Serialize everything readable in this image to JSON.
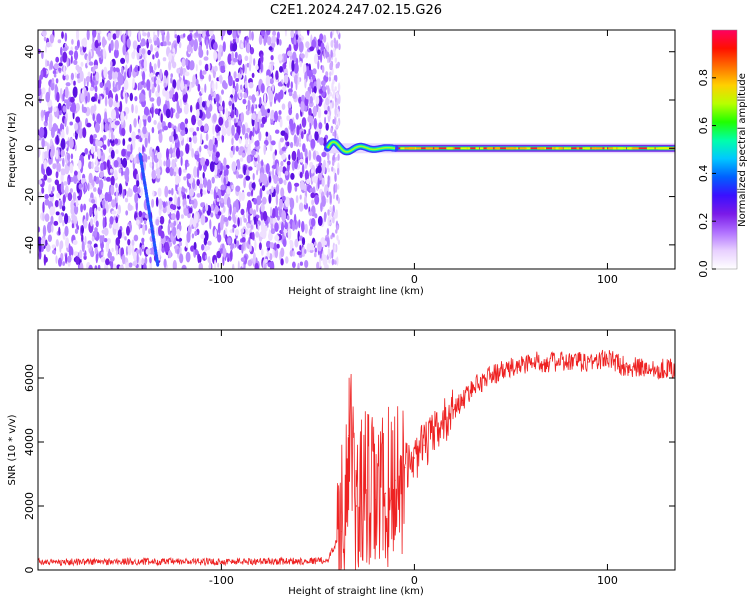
{
  "title": "C2E1.2024.247.02.15.G26",
  "chart_data": [
    {
      "type": "heatmap",
      "xlabel": "Height of straight line (km)",
      "ylabel": "Frequency (Hz)",
      "xlim": [
        -195,
        135
      ],
      "ylim": [
        -50,
        49
      ],
      "xticks": [
        -100,
        0,
        100
      ],
      "yticks": [
        -40,
        -20,
        0,
        20,
        40
      ],
      "colorbar": {
        "label": "Normalized spectral amplitude",
        "range": [
          0,
          1
        ],
        "ticks": [
          0.0,
          0.2,
          0.4,
          0.6,
          0.8
        ],
        "colors": [
          "#ffffff",
          "#e8d0ff",
          "#b070ff",
          "#7a1ae8",
          "#3a10ff",
          "#0060ff",
          "#00c8ff",
          "#00ffaa",
          "#20ff00",
          "#b8ff00",
          "#ffd000",
          "#ff7000",
          "#ff1000",
          "#ff0060"
        ]
      },
      "noise_region_x": [
        -195,
        -45
      ],
      "transition_x": [
        -45,
        -10
      ],
      "carrier_frequency": 0,
      "streak": {
        "x": [
          -142,
          -133
        ],
        "y": [
          -3,
          -48
        ]
      }
    },
    {
      "type": "line",
      "xlabel": "Height of straight line (km)",
      "ylabel": "SNR (10 * v/v)",
      "xlim": [
        -195,
        135
      ],
      "ylim": [
        0,
        7500
      ],
      "xticks": [
        -100,
        0,
        100
      ],
      "yticks": [
        0,
        2000,
        4000,
        6000
      ],
      "color": "#ee2222",
      "series": [
        {
          "x": [
            -195,
            -150,
            -100,
            -60,
            -45,
            -38,
            -34,
            -30,
            -25,
            -20,
            -15,
            -10,
            -5,
            0,
            5,
            10,
            15,
            20,
            25,
            30,
            40,
            50,
            60,
            70,
            80,
            90,
            100,
            110,
            120,
            135
          ],
          "values": [
            250,
            260,
            260,
            280,
            300,
            1200,
            4200,
            2000,
            2500,
            2200,
            2400,
            2800,
            3200,
            3500,
            3900,
            4200,
            4600,
            5000,
            5300,
            5700,
            6100,
            6300,
            6500,
            6500,
            6500,
            6500,
            6600,
            6350,
            6300,
            6300
          ]
        }
      ]
    }
  ]
}
